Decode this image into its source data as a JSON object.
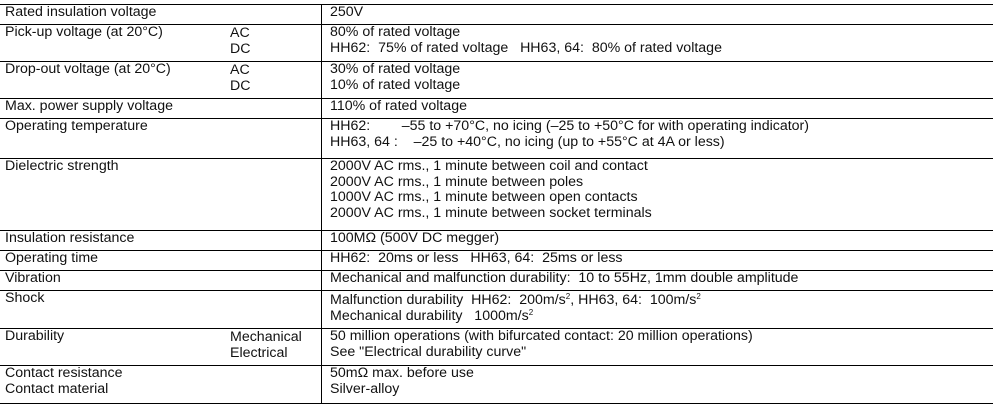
{
  "rows": [
    {
      "label": "Rated insulation voltage",
      "sub": [],
      "values": [
        "250V"
      ]
    },
    {
      "label": "Pick-up voltage (at 20°C)",
      "sub": [
        "AC",
        "DC"
      ],
      "values": [
        "80% of rated voltage",
        "HH62:  75% of rated voltage   HH63, 64:  80% of rated voltage"
      ]
    },
    {
      "label": "Drop-out voltage (at 20°C)",
      "sub": [
        "AC",
        "DC"
      ],
      "values": [
        "30% of rated voltage",
        "10% of rated voltage"
      ]
    },
    {
      "label": "Max. power supply voltage",
      "sub": [],
      "values": [
        "110% of rated voltage"
      ]
    },
    {
      "label": "Operating temperature",
      "sub": [],
      "values": [
        "HH62:        –55 to +70°C, no icing (–25 to +50°C for with operating indicator)",
        "HH63, 64 :    –25 to +40°C, no icing (up to +55°C at 4A or less)"
      ]
    },
    {
      "label": "Dielectric strength",
      "sub": [],
      "values": [
        "2000V AC rms., 1 minute between coil and contact",
        "2000V AC rms., 1 minute between poles",
        "1000V AC rms., 1 minute between open contacts",
        "2000V AC rms., 1 minute between socket terminals"
      ]
    },
    {
      "label": "Insulation resistance",
      "sub": [],
      "values": [
        "100MΩ (500V DC megger)"
      ]
    },
    {
      "label": "Operating time",
      "sub": [],
      "values": [
        "HH62:  20ms or less   HH63, 64:  25ms or less"
      ]
    },
    {
      "label": "Vibration",
      "sub": [],
      "values": [
        "Mechanical and malfunction durability:  10 to 55Hz, 1mm double amplitude"
      ]
    }
  ],
  "shock": {
    "label": "Shock",
    "line1_a": "Malfunction durability  HH62:  200m/s",
    "line1_b": ", HH63, 64:  100m/s",
    "line2": "Mechanical durability   1000m/s",
    "exp": "2"
  },
  "durability": {
    "label": "Durability",
    "sub": [
      "Mechanical",
      "Electrical"
    ],
    "values": [
      "50 million operations (with bifurcated contact: 20 million operations)",
      "See \"Electrical durability curve\""
    ]
  },
  "contact": {
    "labels": [
      "Contact resistance",
      "Contact material"
    ],
    "values": [
      "50mΩ max. before use",
      "Silver-alloy"
    ]
  }
}
